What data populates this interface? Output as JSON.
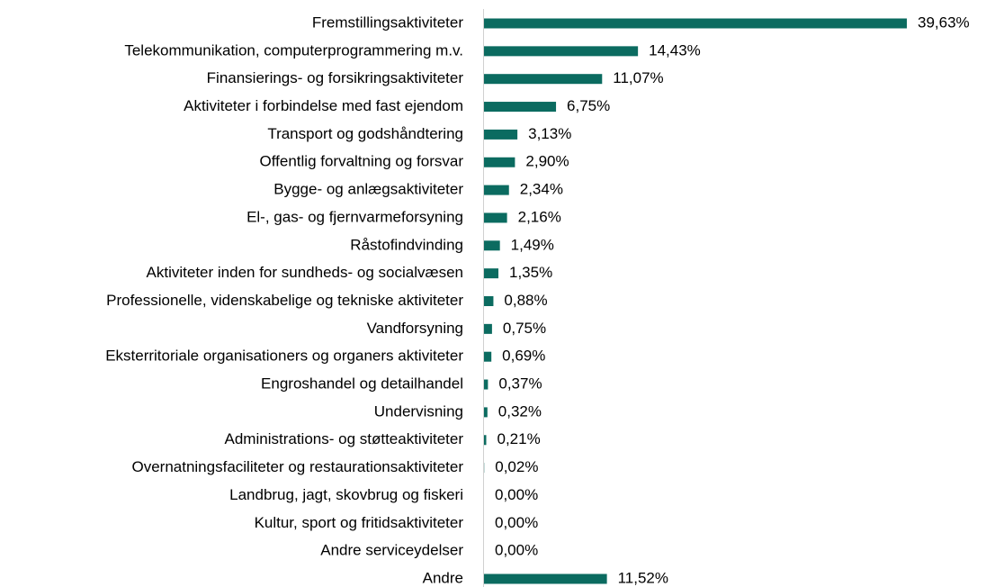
{
  "chart_data": {
    "type": "bar",
    "orientation": "horizontal",
    "categories": [
      "Fremstillingsaktiviteter",
      "Telekommunikation, computerprogrammering m.v.",
      "Finansierings- og forsikringsaktiviteter",
      "Aktiviteter i forbindelse med fast ejendom",
      "Transport og godshåndtering",
      "Offentlig forvaltning og forsvar",
      "Bygge- og anlægsaktiviteter",
      "El-, gas- og fjernvarmeforsyning",
      "Råstofindvinding",
      "Aktiviteter inden for sundheds- og socialvæsen",
      "Professionelle, videnskabelige og tekniske aktiviteter",
      "Vandforsyning",
      "Eksterritoriale organisationers og organers aktiviteter",
      "Engroshandel og detailhandel",
      "Undervisning",
      "Administrations- og støtteaktiviteter",
      "Overnatningsfaciliteter og restaurationsaktiviteter",
      "Landbrug, jagt, skovbrug og fiskeri",
      "Kultur, sport og fritidsaktiviteter",
      "Andre serviceydelser",
      "Andre"
    ],
    "values": [
      39.63,
      14.43,
      11.07,
      6.75,
      3.13,
      2.9,
      2.34,
      2.16,
      1.49,
      1.35,
      0.88,
      0.75,
      0.69,
      0.37,
      0.32,
      0.21,
      0.02,
      0.0,
      0.0,
      0.0,
      11.52
    ],
    "value_labels": [
      "39,63%",
      "14,43%",
      "11,07%",
      "6,75%",
      "3,13%",
      "2,90%",
      "2,34%",
      "2,16%",
      "1,49%",
      "1,35%",
      "0,88%",
      "0,75%",
      "0,69%",
      "0,37%",
      "0,32%",
      "0,21%",
      "0,02%",
      "0,00%",
      "0,00%",
      "0,00%",
      "11,52%"
    ],
    "color": "#0b6b60"
  }
}
